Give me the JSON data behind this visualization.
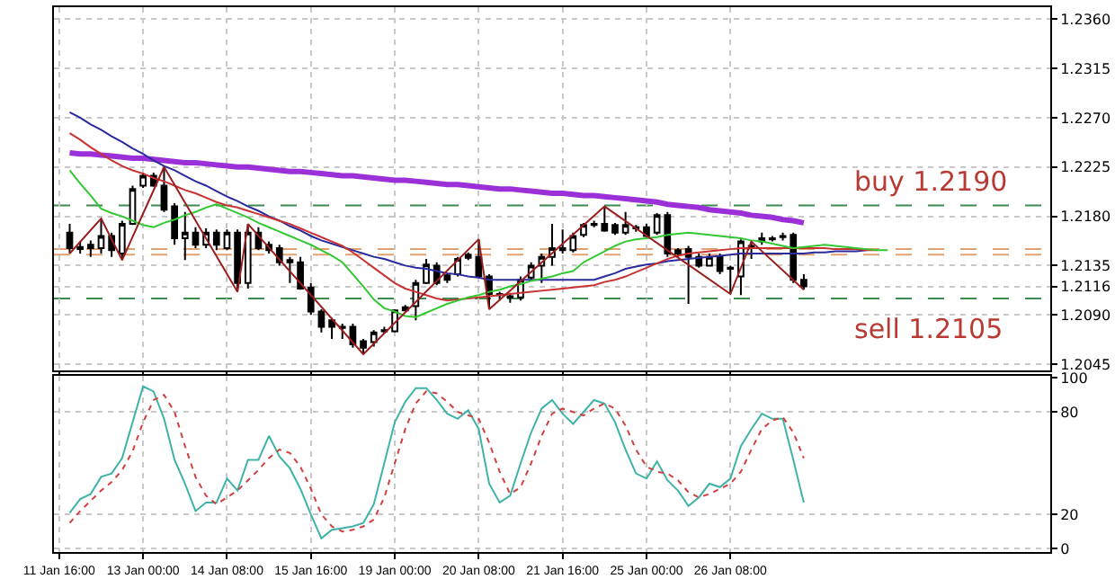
{
  "chart_data": [
    {
      "type": "candlestick",
      "categories": [
        "11 Jan 16:00",
        null,
        null,
        null,
        null,
        null,
        null,
        null,
        "13 Jan 00:00",
        null,
        null,
        null,
        null,
        null,
        null,
        null,
        "14 Jan 08:00",
        null,
        null,
        null,
        null,
        null,
        null,
        null,
        "15 Jan 16:00",
        null,
        null,
        null,
        null,
        null,
        null,
        null,
        "19 Jan 00:00",
        null,
        null,
        null,
        null,
        null,
        null,
        null,
        "20 Jan 08:00",
        null,
        null,
        null,
        null,
        null,
        null,
        null,
        "21 Jan 16:00",
        null,
        null,
        null,
        null,
        null,
        null,
        null,
        "25 Jan 00:00",
        null,
        null,
        null,
        null,
        null,
        null,
        null,
        "26 Jan 08:00",
        null,
        null,
        null,
        null,
        null,
        null,
        null,
        null,
        null,
        null,
        null,
        null,
        null,
        null,
        null,
        null,
        null,
        null,
        null,
        null,
        null,
        null,
        null,
        null,
        null,
        null,
        null,
        null,
        null,
        null
      ],
      "ohlc": [
        null,
        [
          1.2165,
          1.2173,
          1.2146,
          1.2151
        ],
        [
          1.2152,
          1.2157,
          1.2146,
          1.215
        ],
        [
          1.2151,
          1.2158,
          1.2143,
          1.2154
        ],
        [
          1.2151,
          1.2178,
          1.2146,
          1.2162
        ],
        [
          1.2162,
          1.2165,
          1.2143,
          1.2149
        ],
        [
          1.2146,
          1.2176,
          1.214,
          1.2173
        ],
        [
          1.2173,
          1.2208,
          1.2172,
          1.2205
        ],
        [
          1.2208,
          1.222,
          1.2206,
          1.2217
        ],
        [
          1.2217,
          1.222,
          1.2207,
          1.2208
        ],
        [
          1.2208,
          1.2225,
          1.2184,
          1.2186
        ],
        [
          1.2189,
          1.2192,
          1.2154,
          1.216
        ],
        [
          1.216,
          1.2184,
          1.214,
          1.2165
        ],
        [
          1.2165,
          1.217,
          1.2151,
          1.2154
        ],
        [
          1.2154,
          1.2169,
          1.2151,
          1.2165
        ],
        [
          1.2165,
          1.2168,
          1.2149,
          1.2154
        ],
        [
          1.2151,
          1.2168,
          1.2149,
          1.2165
        ],
        [
          1.2165,
          1.2168,
          1.2111,
          1.2119
        ],
        [
          1.2119,
          1.2173,
          1.2114,
          1.2165
        ],
        [
          1.2165,
          1.217,
          1.2149,
          1.2151
        ],
        [
          1.2154,
          1.2157,
          1.2146,
          1.2149
        ],
        [
          1.2151,
          1.2154,
          1.2135,
          1.2138
        ],
        [
          1.214,
          1.2143,
          1.2119,
          1.2138
        ],
        [
          1.2138,
          1.2143,
          1.2113,
          1.2114
        ],
        [
          1.2115,
          1.2119,
          1.209,
          1.2093
        ],
        [
          1.2093,
          1.2095,
          1.2074,
          1.2079
        ],
        [
          1.2085,
          1.2087,
          1.2068,
          1.2079
        ],
        [
          1.2079,
          1.2082,
          1.2068,
          1.2078
        ],
        [
          1.2079,
          1.2082,
          1.206,
          1.2063
        ],
        [
          1.2066,
          1.2068,
          1.2054,
          1.206
        ],
        [
          1.2065,
          1.2076,
          1.2061,
          1.2074
        ],
        [
          1.2075,
          1.2079,
          1.2073,
          1.2076
        ],
        [
          1.2075,
          1.2095,
          1.2074,
          1.2094
        ],
        [
          1.2094,
          1.2099,
          1.2093,
          1.2097
        ],
        [
          1.2098,
          1.2122,
          1.2085,
          1.2119
        ],
        [
          1.2119,
          1.2141,
          1.2118,
          1.2136
        ],
        [
          1.2135,
          1.2138,
          1.2117,
          1.2119
        ],
        [
          1.2126,
          1.2127,
          1.2119,
          1.2122
        ],
        [
          1.2127,
          1.2143,
          1.2125,
          1.2141
        ],
        [
          1.2142,
          1.2147,
          1.214,
          1.2145
        ],
        [
          1.2143,
          1.2159,
          1.2124,
          1.2125
        ],
        [
          1.2125,
          1.2127,
          1.2095,
          1.2109
        ],
        [
          1.2109,
          1.2111,
          1.2103,
          1.2108
        ],
        [
          1.2106,
          1.211,
          1.2101,
          1.2107
        ],
        [
          1.2106,
          1.2125,
          1.2103,
          1.2122
        ],
        [
          1.2124,
          1.2138,
          1.2122,
          1.2135
        ],
        [
          1.2135,
          1.2146,
          1.2119,
          1.2143
        ],
        [
          1.2143,
          1.2173,
          1.2135,
          1.2151
        ],
        [
          1.2151,
          1.2168,
          1.2146,
          1.2149
        ],
        [
          1.2149,
          1.2165,
          1.2147,
          1.2162
        ],
        [
          1.2163,
          1.2174,
          1.2161,
          1.2172
        ],
        [
          1.2172,
          1.2176,
          1.217,
          1.2173
        ],
        [
          1.2173,
          1.2189,
          1.2166,
          1.2167
        ],
        [
          1.2172,
          1.2174,
          1.2163,
          1.2165
        ],
        [
          1.2165,
          1.2184,
          1.2163,
          1.2172
        ],
        [
          1.2169,
          1.2172,
          1.2166,
          1.217
        ],
        [
          1.217,
          1.2173,
          1.2161,
          1.2162
        ],
        [
          1.2165,
          1.2183,
          1.2163,
          1.2181
        ],
        [
          1.2181,
          1.2184,
          1.2143,
          1.2146
        ],
        [
          1.2149,
          1.2151,
          1.2143,
          1.2146
        ],
        [
          1.215,
          1.2153,
          1.21,
          1.2143
        ],
        [
          1.2143,
          1.2146,
          1.2133,
          1.2135
        ],
        [
          1.2135,
          1.2146,
          1.2134,
          1.2143
        ],
        [
          1.2143,
          1.2146,
          1.2127,
          1.213
        ],
        [
          1.2133,
          1.2135,
          1.2109,
          1.2132
        ],
        [
          1.2125,
          1.2159,
          1.2108,
          1.2157
        ],
        [
          1.2153,
          1.2157,
          1.2141,
          1.2151
        ],
        [
          1.2157,
          1.2165,
          1.2154,
          1.216
        ],
        [
          1.216,
          1.2162,
          1.2157,
          1.2159
        ],
        [
          1.2161,
          1.2165,
          1.2158,
          1.2162
        ],
        [
          1.2163,
          1.2165,
          1.2119,
          1.2122
        ],
        [
          1.2122,
          1.2127,
          1.2113,
          1.2116
        ],
        null,
        null,
        null,
        null,
        null,
        null,
        null,
        null,
        null,
        null,
        null,
        null,
        null,
        null,
        null,
        null,
        null,
        null,
        null,
        null,
        null,
        null,
        null
      ],
      "series": [
        {
          "type": "line",
          "color": "#9b30d9",
          "values": [
            null,
            1.2238,
            1.2237,
            1.2237,
            1.2236,
            1.2235,
            1.2234,
            1.2233,
            1.2233,
            1.2232,
            1.2231,
            1.223,
            1.2229,
            1.2229,
            1.2228,
            1.2227,
            1.2226,
            1.2225,
            1.2225,
            1.2224,
            1.2223,
            1.2222,
            1.2221,
            1.2221,
            1.222,
            1.2219,
            1.2218,
            1.2217,
            1.2217,
            1.2216,
            1.2215,
            1.2214,
            1.2213,
            1.2213,
            1.2212,
            1.2211,
            1.221,
            1.2209,
            1.2209,
            1.2208,
            1.2207,
            1.2206,
            1.2205,
            1.2205,
            1.2204,
            1.2203,
            1.2202,
            1.2201,
            1.2201,
            1.22,
            1.2199,
            1.2199,
            1.2198,
            1.2197,
            1.2196,
            1.2195,
            1.2194,
            1.2193,
            1.2191,
            1.219,
            1.2189,
            1.2188,
            1.2186,
            1.2185,
            1.2184,
            1.2183,
            1.2181,
            1.218,
            1.2179,
            1.2177,
            1.2176,
            1.2174,
            null,
            null,
            null,
            null,
            null,
            null,
            null,
            null,
            null,
            null,
            null,
            null,
            null,
            null,
            null,
            null,
            null,
            null,
            null,
            null,
            null,
            null,
            null
          ]
        },
        {
          "type": "line",
          "color": "#2a2a9e",
          "values": [
            null,
            1.2275,
            1.227,
            1.2264,
            1.2259,
            1.2253,
            1.2248,
            1.2242,
            1.2237,
            1.2231,
            1.2226,
            1.2222,
            1.2217,
            1.2212,
            1.2208,
            1.2203,
            1.2198,
            1.2194,
            1.2189,
            1.2185,
            1.218,
            1.2176,
            1.2171,
            1.2167,
            1.2162,
            1.2158,
            1.2155,
            1.2152,
            1.2149,
            1.2146,
            1.2143,
            1.2141,
            1.2138,
            1.2135,
            1.2133,
            1.2132,
            1.213,
            1.2128,
            1.2127,
            1.2125,
            1.2124,
            1.2122,
            1.2122,
            1.2122,
            1.2122,
            1.2122,
            1.2122,
            1.2122,
            1.2122,
            1.2122,
            1.2122,
            1.2122,
            1.2125,
            1.2128,
            1.2132,
            1.2134,
            1.2136,
            1.2137,
            1.2139,
            1.214,
            1.2141,
            1.2142,
            1.2143,
            1.2144,
            1.2145,
            1.2146,
            1.2146,
            1.2146,
            1.2146,
            1.2146,
            1.2146,
            1.2146,
            1.2147,
            1.2147,
            1.2148,
            1.2148,
            1.2148,
            1.2149,
            null,
            null,
            null,
            null,
            null,
            null,
            null,
            null,
            null,
            null,
            null,
            null,
            null,
            null,
            null,
            null,
            null
          ]
        },
        {
          "type": "line",
          "color": "#c83232",
          "values": [
            null,
            1.2256,
            1.225,
            1.2243,
            1.2237,
            1.2231,
            1.2226,
            1.2222,
            1.2219,
            1.2215,
            1.2212,
            1.2208,
            1.2204,
            1.2201,
            1.2197,
            1.2193,
            1.219,
            1.2188,
            1.2185,
            1.2182,
            1.2179,
            1.2176,
            1.2173,
            1.2169,
            1.2165,
            1.2161,
            1.2157,
            1.2153,
            1.2147,
            1.214,
            1.2133,
            1.2126,
            1.2119,
            1.2114,
            1.2111,
            1.2108,
            1.2105,
            1.2103,
            1.2104,
            1.2105,
            1.2106,
            1.2107,
            1.2108,
            1.2109,
            1.211,
            1.2111,
            1.2112,
            1.2113,
            1.2114,
            1.2115,
            1.2116,
            1.2117,
            1.212,
            1.2122,
            1.2125,
            1.2129,
            1.2133,
            1.2137,
            1.2141,
            1.2144,
            1.2146,
            1.2147,
            1.2148,
            1.2149,
            1.215,
            1.2151,
            1.2151,
            1.2151,
            1.2151,
            1.2151,
            1.2151,
            1.2151,
            1.2151,
            1.2151,
            1.215,
            1.215,
            1.215,
            1.2149,
            1.2149,
            null,
            null,
            null,
            null,
            null,
            null,
            null,
            null,
            null,
            null,
            null,
            null,
            null,
            null,
            null,
            null
          ]
        },
        {
          "type": "line",
          "color": "#32c832",
          "values": [
            null,
            1.2222,
            1.221,
            1.2199,
            1.2187,
            1.2183,
            1.218,
            1.2176,
            1.2172,
            1.217,
            1.2174,
            1.2177,
            1.2181,
            1.2184,
            1.2188,
            1.2191,
            1.2187,
            1.2183,
            1.2179,
            1.2174,
            1.217,
            1.2166,
            1.2162,
            1.2158,
            1.2154,
            1.2149,
            1.2144,
            1.2138,
            1.2127,
            1.2116,
            1.2104,
            1.2096,
            1.2093,
            1.2089,
            1.2088,
            1.2092,
            1.2096,
            1.21,
            1.2103,
            1.2106,
            1.2108,
            1.2111,
            1.2113,
            1.2116,
            1.2118,
            1.2121,
            1.2123,
            1.2125,
            1.2128,
            1.213,
            1.2138,
            1.2143,
            1.2148,
            1.2153,
            1.2157,
            1.2159,
            1.216,
            1.2161,
            1.2163,
            1.2164,
            1.2165,
            1.2164,
            1.2163,
            1.2162,
            1.2161,
            1.216,
            1.2158,
            1.2157,
            1.2155,
            1.2153,
            1.2151,
            1.2152,
            1.2153,
            1.2154,
            1.2153,
            1.2152,
            1.2151,
            1.215,
            1.2149,
            1.2149,
            null,
            null,
            null,
            null,
            null,
            null,
            null,
            null,
            null,
            null,
            null,
            null,
            null,
            null,
            null
          ]
        },
        {
          "type": "line",
          "color": "#9a1e1e",
          "values": [
            null,
            1.2146,
            null,
            null,
            1.2178,
            null,
            1.214,
            null,
            null,
            null,
            1.2225,
            null,
            null,
            null,
            null,
            null,
            null,
            1.2111,
            1.2173,
            null,
            null,
            null,
            null,
            null,
            null,
            null,
            null,
            null,
            null,
            1.2054,
            null,
            null,
            null,
            null,
            null,
            null,
            null,
            null,
            null,
            null,
            1.2159,
            1.2095,
            null,
            null,
            null,
            null,
            null,
            null,
            null,
            null,
            null,
            null,
            1.2189,
            null,
            null,
            null,
            null,
            null,
            null,
            null,
            null,
            null,
            null,
            null,
            1.2109,
            null,
            1.2157,
            null,
            null,
            null,
            null,
            1.2113,
            null,
            null,
            null,
            null,
            null,
            null,
            null,
            null,
            null,
            null,
            null,
            null,
            null,
            null,
            null,
            null,
            null,
            null,
            null,
            null,
            null,
            null,
            null
          ]
        }
      ],
      "ylim": [
        1.2039,
        1.2371
      ],
      "yticks": [
        1.2045,
        {
          "value": 1.209,
          "label": "1.2090"
        },
        1.2116,
        1.2135,
        {
          "value": 1.218,
          "label": "1.2180"
        },
        1.2225,
        {
          "value": 1.227,
          "label": "1.2270"
        },
        1.2315,
        {
          "value": 1.236,
          "label": "1.2360"
        }
      ],
      "ref_lines": [
        {
          "axis": "y",
          "value": 1.219,
          "label": "buy 1.2190",
          "color": "#3c8c50",
          "line_style": "dashed"
        },
        {
          "axis": "y",
          "value": 1.2105,
          "label": "sell 1.2105",
          "color": "#3c8c50",
          "line_style": "dashed"
        },
        {
          "axis": "y",
          "value": 1.215,
          "color": "#e3a070",
          "line_style": "dashed"
        },
        {
          "axis": "y",
          "value": 1.2145,
          "color": "#e3a070",
          "line_style": "dashed"
        }
      ],
      "grid": true,
      "tick_labels": "y"
    },
    {
      "type": "line",
      "categories": [
        "11 Jan 16:00",
        null,
        null,
        null,
        null,
        null,
        null,
        null,
        "13 Jan 00:00",
        null,
        null,
        null,
        null,
        null,
        null,
        null,
        "14 Jan 08:00",
        null,
        null,
        null,
        null,
        null,
        null,
        null,
        "15 Jan 16:00",
        null,
        null,
        null,
        null,
        null,
        null,
        null,
        "19 Jan 00:00",
        null,
        null,
        null,
        null,
        null,
        null,
        null,
        "20 Jan 08:00",
        null,
        null,
        null,
        null,
        null,
        null,
        null,
        "21 Jan 16:00",
        null,
        null,
        null,
        null,
        null,
        null,
        null,
        "25 Jan 00:00",
        null,
        null,
        null,
        null,
        null,
        null,
        null,
        "26 Jan 08:00",
        null,
        null,
        null,
        null,
        null,
        null,
        null,
        null,
        null,
        null,
        null,
        null,
        null,
        null,
        null,
        null,
        null,
        null,
        null,
        null,
        null,
        null,
        null,
        null,
        null,
        null,
        null,
        null,
        null,
        null
      ],
      "series": [
        {
          "color": "#3fb3a8",
          "line_style": "solid",
          "values": [
            null,
            21,
            29,
            32,
            42,
            44,
            53,
            74,
            95,
            92,
            76,
            52,
            38,
            22,
            27,
            27,
            41,
            34,
            52,
            52,
            66,
            54,
            47,
            35,
            20,
            6,
            11,
            12,
            13,
            15,
            26,
            50,
            74,
            86,
            94,
            94,
            87,
            79,
            76,
            81,
            70,
            38,
            27,
            31,
            50,
            68,
            82,
            87,
            79,
            73,
            80,
            87,
            85,
            74,
            58,
            44,
            41,
            51,
            40,
            34,
            25,
            30,
            38,
            36,
            41,
            60,
            70,
            79,
            76,
            76,
            52,
            27,
            null,
            null,
            null,
            null,
            null,
            null,
            null,
            null,
            null,
            null,
            null,
            null,
            null,
            null,
            null,
            null,
            null,
            null,
            null,
            null,
            null,
            null,
            null
          ]
        },
        {
          "color": "#d04040",
          "line_style": "dotted",
          "values": [
            null,
            15,
            22,
            28,
            34,
            39,
            46,
            57,
            74,
            87,
            90,
            80,
            60,
            42,
            31,
            26,
            30,
            34,
            40,
            46,
            53,
            58,
            56,
            48,
            35,
            20,
            13,
            10,
            11,
            13,
            17,
            30,
            50,
            70,
            85,
            92,
            91,
            86,
            80,
            78,
            76,
            62,
            45,
            32,
            36,
            50,
            66,
            79,
            82,
            80,
            78,
            82,
            85,
            82,
            72,
            58,
            48,
            45,
            44,
            40,
            33,
            30,
            32,
            35,
            38,
            45,
            58,
            70,
            75,
            77,
            68,
            53,
            null,
            null,
            null,
            null,
            null,
            null,
            null,
            null,
            null,
            null,
            null,
            null,
            null,
            null,
            null,
            null,
            null,
            null,
            null,
            null,
            null,
            null,
            null
          ]
        }
      ],
      "ylim": [
        -2,
        101
      ],
      "yticks": [
        0,
        20,
        80,
        100
      ],
      "grid": true
    }
  ]
}
